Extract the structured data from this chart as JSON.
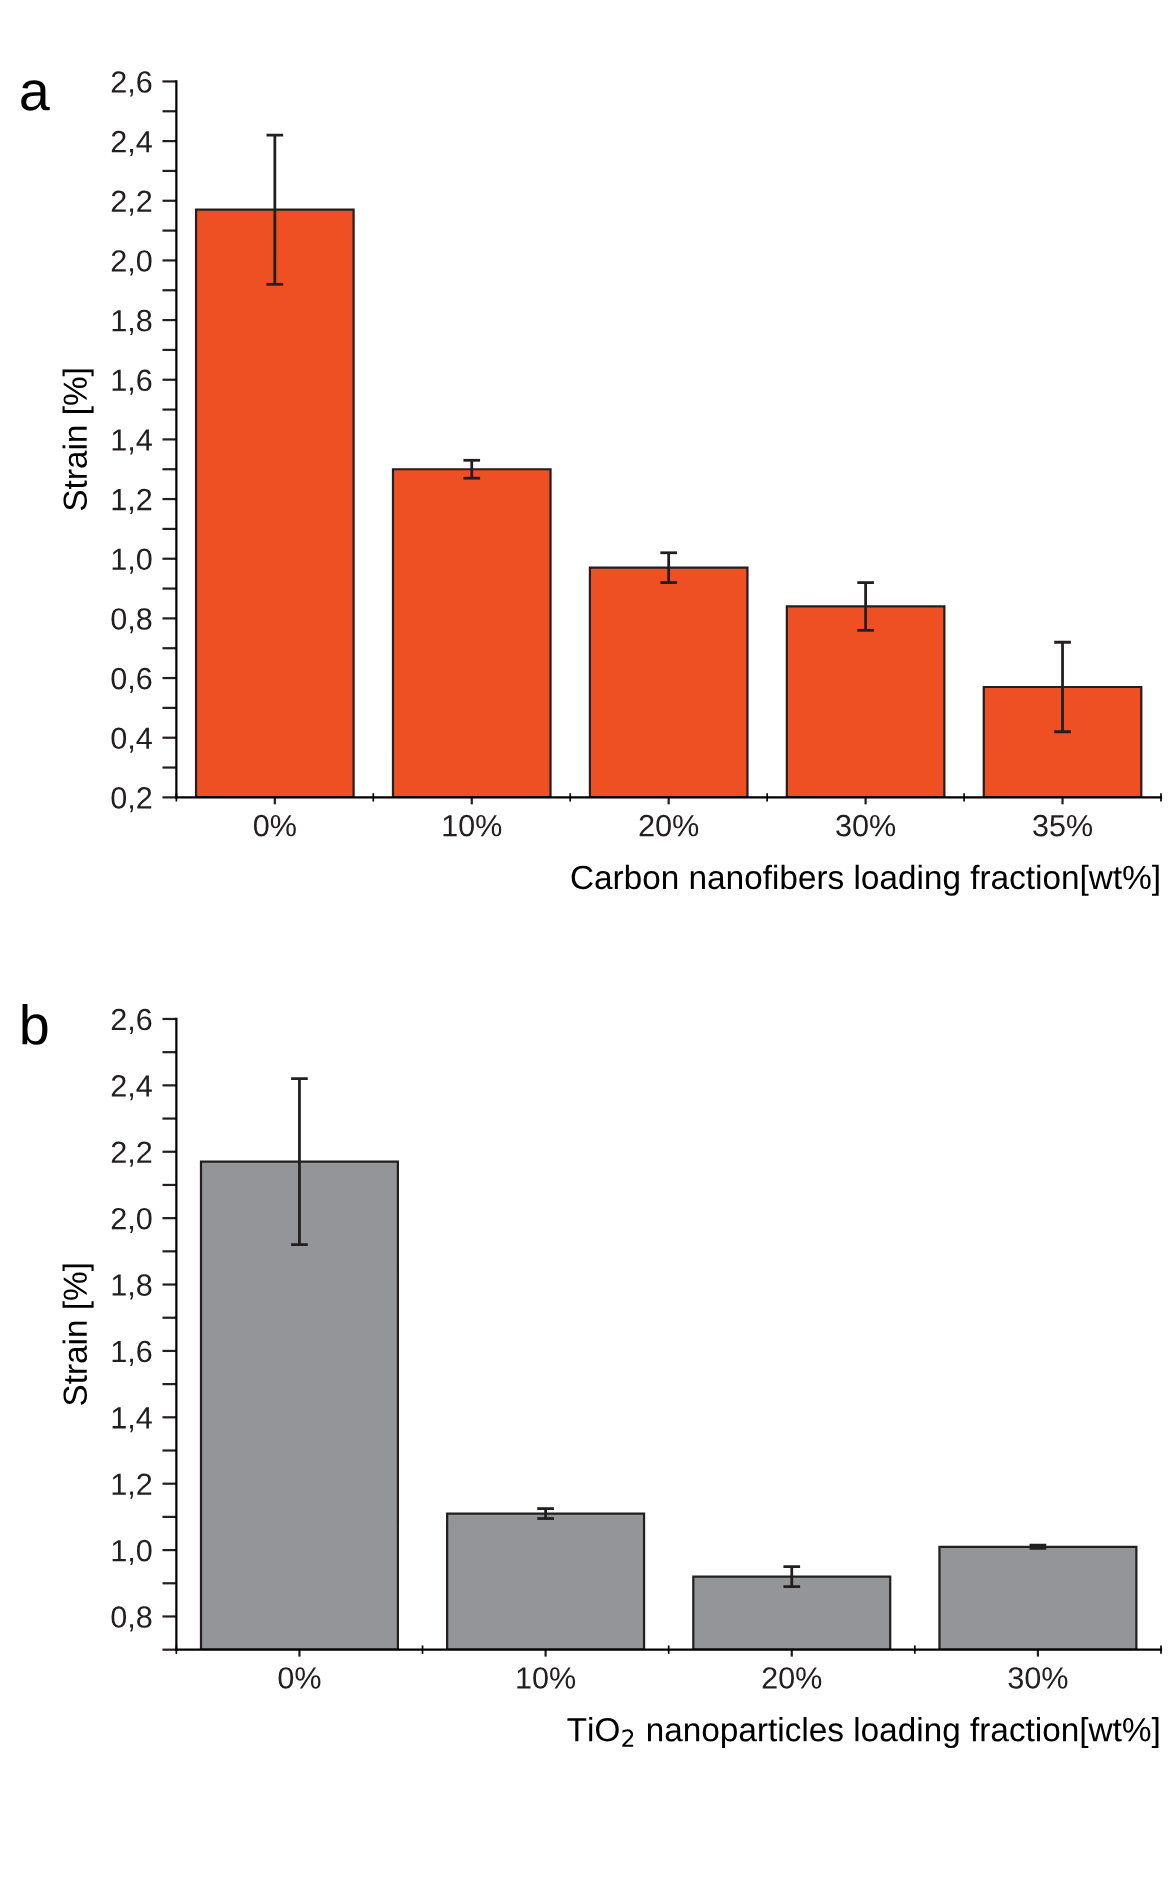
{
  "chart_data": [
    {
      "type": "bar",
      "title": "a",
      "xlabel": "Carbon nanofibers loading fraction[wt%]",
      "ylabel": "Strain [%]",
      "categories": [
        "0%",
        "10%",
        "20%",
        "30%",
        "35%"
      ],
      "series": [
        {
          "color": "#ef5023",
          "values": [
            2.17,
            1.3,
            0.97,
            0.84,
            0.57
          ],
          "errors": [
            0.25,
            0.03,
            0.05,
            0.08,
            0.15
          ]
        }
      ],
      "ylim": [
        0.2,
        2.6
      ],
      "yticks": [
        {
          "value": 0.2,
          "label": "0,2"
        },
        {
          "value": 0.3,
          "label": null
        },
        {
          "value": 0.4,
          "label": "0,4"
        },
        {
          "value": 0.5,
          "label": null
        },
        {
          "value": 0.6,
          "label": "0,6"
        },
        {
          "value": 0.7,
          "label": null
        },
        {
          "value": 0.8,
          "label": "0,8"
        },
        {
          "value": 0.9,
          "label": null
        },
        {
          "value": 1.0,
          "label": "1,0"
        },
        {
          "value": 1.1,
          "label": null
        },
        {
          "value": 1.2,
          "label": "1,2"
        },
        {
          "value": 1.3,
          "label": null
        },
        {
          "value": 1.4,
          "label": "1,4"
        },
        {
          "value": 1.5,
          "label": null
        },
        {
          "value": 1.6,
          "label": "1,6"
        },
        {
          "value": 1.7,
          "label": null
        },
        {
          "value": 1.8,
          "label": "1,8"
        },
        {
          "value": 1.9,
          "label": null
        },
        {
          "value": 2.0,
          "label": "2,0"
        },
        {
          "value": 2.1,
          "label": null
        },
        {
          "value": 2.2,
          "label": "2,2"
        },
        {
          "value": 2.3,
          "label": null
        },
        {
          "value": 2.4,
          "label": "2,4"
        },
        {
          "value": 2.5,
          "label": null
        },
        {
          "value": 2.6,
          "label": "2,6"
        }
      ],
      "grid": false,
      "legend": false
    },
    {
      "type": "bar",
      "title": "b",
      "xlabel": "TiO$_{2}$ nanoparticles loading fraction[wt%]",
      "ylabel": "Strain [%]",
      "categories": [
        "0%",
        "10%",
        "20%",
        "30%"
      ],
      "series": [
        {
          "color": "#939598",
          "values": [
            2.17,
            1.11,
            0.92,
            1.01
          ],
          "errors": [
            0.25,
            0.015,
            0.03,
            0.005
          ]
        }
      ],
      "ylim": [
        0.7,
        2.6
      ],
      "yticks": [
        {
          "value": 0.7,
          "label": null
        },
        {
          "value": 0.8,
          "label": "0,8"
        },
        {
          "value": 0.9,
          "label": null
        },
        {
          "value": 1.0,
          "label": "1,0"
        },
        {
          "value": 1.1,
          "label": null
        },
        {
          "value": 1.2,
          "label": "1,2"
        },
        {
          "value": 1.3,
          "label": null
        },
        {
          "value": 1.4,
          "label": "1,4"
        },
        {
          "value": 1.5,
          "label": null
        },
        {
          "value": 1.6,
          "label": "1,6"
        },
        {
          "value": 1.7,
          "label": null
        },
        {
          "value": 1.8,
          "label": "1,8"
        },
        {
          "value": 1.9,
          "label": null
        },
        {
          "value": 2.0,
          "label": "2,0"
        },
        {
          "value": 2.1,
          "label": null
        },
        {
          "value": 2.2,
          "label": "2,2"
        },
        {
          "value": 2.3,
          "label": null
        },
        {
          "value": 2.4,
          "label": "2,4"
        },
        {
          "value": 2.5,
          "label": null
        },
        {
          "value": 2.6,
          "label": "2,6"
        }
      ],
      "grid": false,
      "legend": false
    }
  ]
}
